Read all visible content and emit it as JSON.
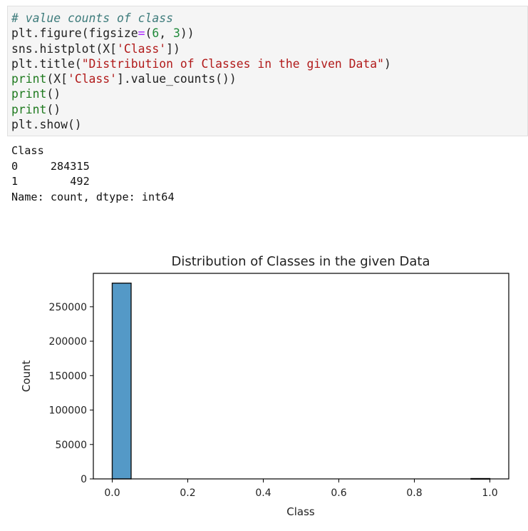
{
  "code_cell": {
    "lines": [
      [
        {
          "t": "# value counts of class",
          "c": "comment"
        }
      ],
      [
        {
          "t": "plt.figure(figsize",
          "c": "plain"
        },
        {
          "t": "=",
          "c": "op"
        },
        {
          "t": "(",
          "c": "plain"
        },
        {
          "t": "6",
          "c": "number"
        },
        {
          "t": ", ",
          "c": "plain"
        },
        {
          "t": "3",
          "c": "number"
        },
        {
          "t": "))",
          "c": "plain"
        }
      ],
      [
        {
          "t": "sns.histplot(X[",
          "c": "plain"
        },
        {
          "t": "'Class'",
          "c": "string"
        },
        {
          "t": "])",
          "c": "plain"
        }
      ],
      [
        {
          "t": "plt.title(",
          "c": "plain"
        },
        {
          "t": "\"Distribution of Classes in the given Data\"",
          "c": "string"
        },
        {
          "t": ")",
          "c": "plain"
        }
      ],
      [
        {
          "t": "print",
          "c": "builtin"
        },
        {
          "t": "(X[",
          "c": "plain"
        },
        {
          "t": "'Class'",
          "c": "string"
        },
        {
          "t": "].value_counts())",
          "c": "plain"
        }
      ],
      [
        {
          "t": "print",
          "c": "builtin"
        },
        {
          "t": "()",
          "c": "plain"
        }
      ],
      [
        {
          "t": "print",
          "c": "builtin"
        },
        {
          "t": "()",
          "c": "plain"
        }
      ],
      [
        {
          "t": "plt.show()",
          "c": "plain"
        }
      ]
    ]
  },
  "output": {
    "lines": [
      "Class",
      "0     284315",
      "1        492",
      "Name: count, dtype: int64"
    ]
  },
  "colors": {
    "bar_fill": "#5499c7",
    "bar_edge": "#111111",
    "axes": "#000000"
  },
  "chart_data": {
    "type": "bar",
    "title": "Distribution of Classes in the given Data",
    "xlabel": "Class",
    "ylabel": "Count",
    "xlim": [
      -0.05,
      1.05
    ],
    "ylim": [
      0,
      298531
    ],
    "x_ticks": [
      0.0,
      0.2,
      0.4,
      0.6,
      0.8,
      1.0
    ],
    "x_tick_labels": [
      "0.0",
      "0.2",
      "0.4",
      "0.6",
      "0.8",
      "1.0"
    ],
    "y_ticks": [
      0,
      50000,
      100000,
      150000,
      200000,
      250000
    ],
    "y_tick_labels": [
      "0",
      "50000",
      "100000",
      "150000",
      "200000",
      "250000"
    ],
    "bins": [
      {
        "start": 0.0,
        "end": 0.05,
        "count": 284315
      },
      {
        "start": 0.95,
        "end": 1.0,
        "count": 492
      }
    ],
    "grid": false,
    "legend": "none"
  }
}
